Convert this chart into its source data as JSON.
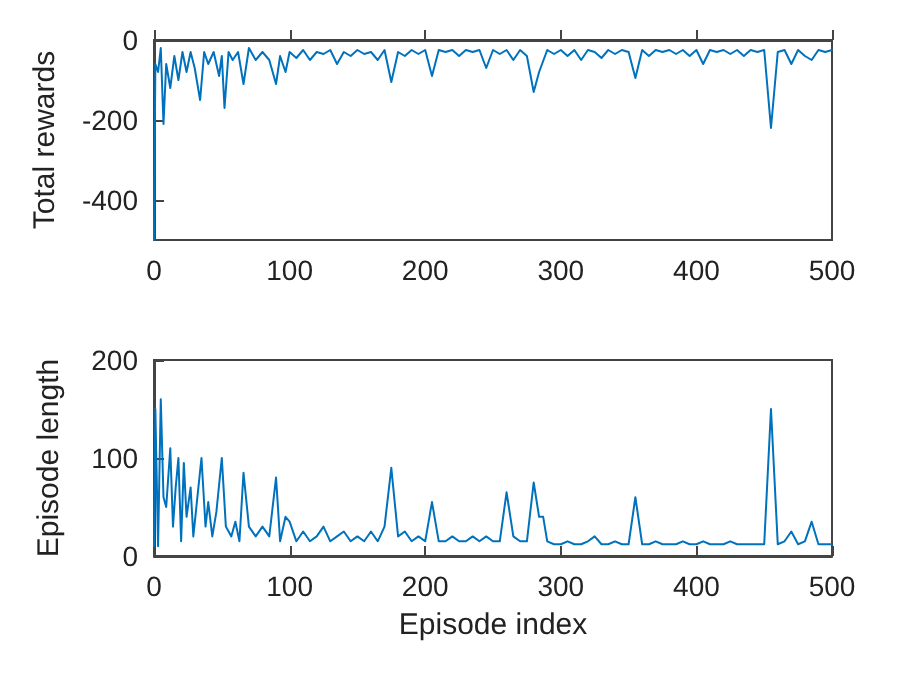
{
  "chart_data": [
    {
      "type": "line",
      "ylabel": "Total rewards",
      "xlim": [
        0,
        500
      ],
      "xticks": [
        0,
        100,
        200,
        300,
        400,
        500
      ],
      "ylim": [
        -500,
        0
      ],
      "yticks": [
        -400,
        -200,
        0
      ],
      "grid": false,
      "marker": "none",
      "line_style": "solid",
      "series": [
        {
          "color": "#0072bd",
          "x": [
            0,
            1,
            3,
            5,
            7,
            9,
            12,
            15,
            18,
            21,
            24,
            27,
            30,
            34,
            37,
            40,
            44,
            48,
            50,
            52,
            55,
            58,
            62,
            66,
            70,
            75,
            80,
            85,
            90,
            93,
            97,
            100,
            105,
            110,
            115,
            120,
            125,
            130,
            135,
            140,
            145,
            150,
            155,
            160,
            165,
            170,
            175,
            180,
            185,
            190,
            195,
            200,
            205,
            210,
            215,
            220,
            225,
            230,
            235,
            240,
            245,
            250,
            255,
            260,
            265,
            270,
            275,
            280,
            284,
            290,
            295,
            300,
            305,
            310,
            315,
            320,
            325,
            330,
            335,
            340,
            345,
            350,
            355,
            360,
            365,
            370,
            375,
            380,
            385,
            390,
            395,
            400,
            405,
            410,
            415,
            420,
            425,
            430,
            435,
            440,
            445,
            450,
            455,
            460,
            465,
            470,
            475,
            480,
            485,
            490,
            495,
            500
          ],
          "values": [
            -500,
            -60,
            -80,
            -20,
            -210,
            -60,
            -120,
            -40,
            -100,
            -30,
            -80,
            -30,
            -70,
            -150,
            -30,
            -60,
            -30,
            -90,
            -40,
            -170,
            -30,
            -50,
            -30,
            -110,
            -20,
            -50,
            -30,
            -50,
            -110,
            -40,
            -80,
            -30,
            -45,
            -25,
            -50,
            -30,
            -35,
            -25,
            -60,
            -30,
            -40,
            -25,
            -35,
            -30,
            -50,
            -25,
            -105,
            -30,
            -40,
            -25,
            -35,
            -25,
            -90,
            -25,
            -30,
            -25,
            -40,
            -25,
            -30,
            -25,
            -70,
            -25,
            -35,
            -25,
            -50,
            -25,
            -40,
            -130,
            -80,
            -25,
            -35,
            -25,
            -40,
            -25,
            -50,
            -25,
            -30,
            -45,
            -25,
            -35,
            -25,
            -30,
            -95,
            -25,
            -40,
            -25,
            -30,
            -25,
            -35,
            -25,
            -40,
            -25,
            -60,
            -25,
            -30,
            -25,
            -35,
            -25,
            -40,
            -25,
            -30,
            -25,
            -220,
            -30,
            -25,
            -60,
            -25,
            -40,
            -50,
            -25,
            -30,
            -25
          ]
        }
      ]
    },
    {
      "type": "line",
      "ylabel": "Episode length",
      "xlabel": "Episode index",
      "xlim": [
        0,
        500
      ],
      "xticks": [
        0,
        100,
        200,
        300,
        400,
        500
      ],
      "ylim": [
        0,
        200
      ],
      "yticks": [
        0,
        100,
        200
      ],
      "grid": false,
      "marker": "none",
      "line_style": "solid",
      "series": [
        {
          "color": "#0072bd",
          "x": [
            0,
            1,
            3,
            5,
            7,
            9,
            12,
            14,
            16,
            18,
            20,
            22,
            24,
            27,
            29,
            32,
            35,
            38,
            40,
            43,
            46,
            50,
            53,
            57,
            60,
            63,
            66,
            70,
            75,
            80,
            85,
            90,
            93,
            97,
            100,
            105,
            110,
            115,
            120,
            125,
            130,
            135,
            140,
            145,
            150,
            155,
            160,
            165,
            170,
            175,
            180,
            185,
            190,
            195,
            200,
            205,
            210,
            215,
            220,
            225,
            230,
            235,
            240,
            245,
            250,
            255,
            260,
            265,
            270,
            275,
            280,
            284,
            287,
            290,
            295,
            300,
            305,
            310,
            315,
            320,
            325,
            330,
            335,
            340,
            345,
            350,
            355,
            360,
            365,
            370,
            375,
            380,
            385,
            390,
            395,
            400,
            405,
            410,
            415,
            420,
            425,
            430,
            435,
            440,
            445,
            450,
            455,
            460,
            465,
            470,
            475,
            480,
            485,
            490,
            495,
            500
          ],
          "values": [
            10,
            150,
            10,
            160,
            60,
            50,
            110,
            30,
            70,
            100,
            15,
            95,
            40,
            70,
            20,
            60,
            100,
            30,
            55,
            20,
            45,
            100,
            30,
            20,
            35,
            15,
            85,
            30,
            20,
            30,
            20,
            80,
            15,
            40,
            35,
            15,
            25,
            15,
            20,
            30,
            15,
            20,
            25,
            15,
            20,
            15,
            25,
            15,
            30,
            90,
            20,
            25,
            15,
            20,
            15,
            55,
            15,
            15,
            20,
            15,
            15,
            20,
            15,
            20,
            15,
            15,
            65,
            20,
            15,
            15,
            75,
            40,
            40,
            15,
            12,
            12,
            15,
            12,
            12,
            15,
            20,
            12,
            12,
            15,
            12,
            12,
            60,
            12,
            12,
            15,
            12,
            12,
            12,
            15,
            12,
            12,
            15,
            12,
            12,
            12,
            15,
            12,
            12,
            12,
            12,
            12,
            150,
            12,
            15,
            25,
            12,
            15,
            35,
            12,
            12,
            12
          ]
        }
      ]
    }
  ]
}
